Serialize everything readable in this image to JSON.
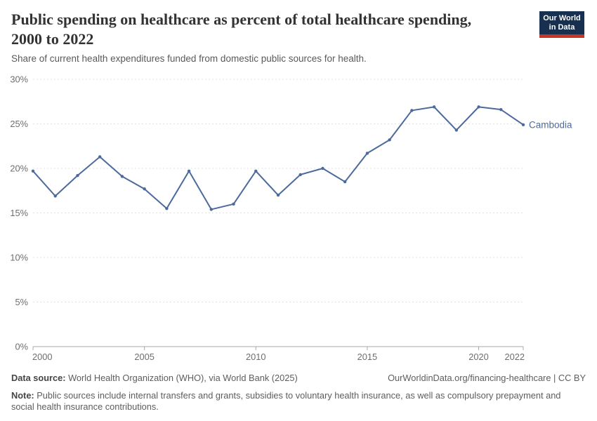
{
  "header": {
    "title": "Public spending on healthcare as percent of total healthcare spending, 2000 to 2022",
    "subtitle": "Share of current health expenditures funded from domestic public sources for health.",
    "logo": {
      "line1": "Our World",
      "line2": "in Data"
    }
  },
  "chart_data": {
    "type": "line",
    "title": "Public spending on healthcare as percent of total healthcare spending, 2000 to 2022",
    "xlabel": "",
    "ylabel": "",
    "x": [
      2000,
      2001,
      2002,
      2003,
      2004,
      2005,
      2006,
      2007,
      2008,
      2009,
      2010,
      2011,
      2012,
      2013,
      2014,
      2015,
      2016,
      2017,
      2018,
      2019,
      2020,
      2021,
      2022
    ],
    "series": [
      {
        "name": "Cambodia",
        "color": "#4c6a9c",
        "values": [
          19.7,
          16.9,
          19.2,
          21.3,
          19.1,
          17.7,
          15.5,
          19.7,
          15.4,
          16.0,
          19.7,
          17.0,
          19.3,
          20.0,
          18.5,
          21.7,
          23.2,
          26.5,
          26.9,
          24.3,
          26.9,
          26.6,
          24.9
        ]
      }
    ],
    "xlim": [
      2000,
      2022
    ],
    "ylim": [
      0,
      30
    ],
    "yticks": [
      0,
      5,
      10,
      15,
      20,
      25,
      30
    ],
    "ytick_suffix": "%",
    "xticks": [
      2000,
      2005,
      2010,
      2015,
      2020,
      2022
    ],
    "grid": "horizontal-dashed",
    "legend_position": "end-of-line-label",
    "end_label": "Cambodia"
  },
  "footer": {
    "datasource_label": "Data source:",
    "datasource_text": " World Health Organization (WHO), via World Bank (2025)",
    "link_text": "OurWorldinData.org/financing-healthcare | CC BY",
    "note_label": "Note:",
    "note_text": " Public sources include internal transfers and grants, subsidies to voluntary health insurance, as well as compulsory prepayment and social health insurance contributions."
  },
  "colors": {
    "line": "#4c6a9c",
    "grid": "#e0e0e0",
    "axis": "#a8a8a8",
    "tick_label": "#6e6e6e",
    "logo_bg": "#17304f",
    "logo_red": "#c5362a",
    "title": "#333333",
    "subtitle": "#5a5a5a",
    "footer": "#5d5d5d"
  }
}
